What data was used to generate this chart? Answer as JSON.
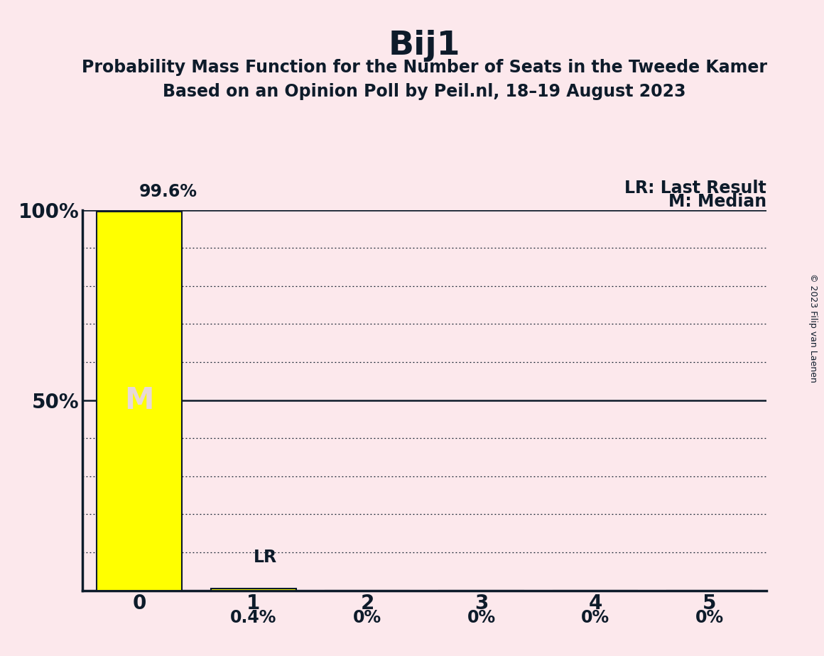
{
  "title": "Bij1",
  "subtitle1": "Probability Mass Function for the Number of Seats in the Tweede Kamer",
  "subtitle2": "Based on an Opinion Poll by Peil.nl, 18–19 August 2023",
  "copyright": "© 2023 Filip van Laenen",
  "x_values": [
    0,
    1,
    2,
    3,
    4,
    5
  ],
  "y_values": [
    99.6,
    0.4,
    0.0,
    0.0,
    0.0,
    0.0
  ],
  "bar_color": "#ffff00",
  "background_color": "#fce8ec",
  "bar_labels": [
    "99.6%",
    "0.4%",
    "0%",
    "0%",
    "0%",
    "0%"
  ],
  "median_seat": 0,
  "last_result_seat": 1,
  "legend_lr": "LR: Last Result",
  "legend_m": "M: Median",
  "ylim": [
    0,
    100
  ],
  "xlim": [
    -0.5,
    5.5
  ],
  "yticks": [
    50,
    100
  ],
  "ytick_labels": [
    "50%",
    "100%"
  ],
  "xticks": [
    0,
    1,
    2,
    3,
    4,
    5
  ],
  "title_fontsize": 34,
  "subtitle_fontsize": 17,
  "bar_label_fontsize": 17,
  "axis_tick_fontsize": 20,
  "legend_fontsize": 17,
  "median_label": "M",
  "lr_label": "LR",
  "bar_width": 0.75,
  "text_color": "#0d1b2a",
  "median_text_color": "#e8d8d8",
  "dotted_grid_levels": [
    10,
    20,
    30,
    40,
    60,
    70,
    80,
    90
  ],
  "solid_line_levels": [
    50,
    100
  ]
}
